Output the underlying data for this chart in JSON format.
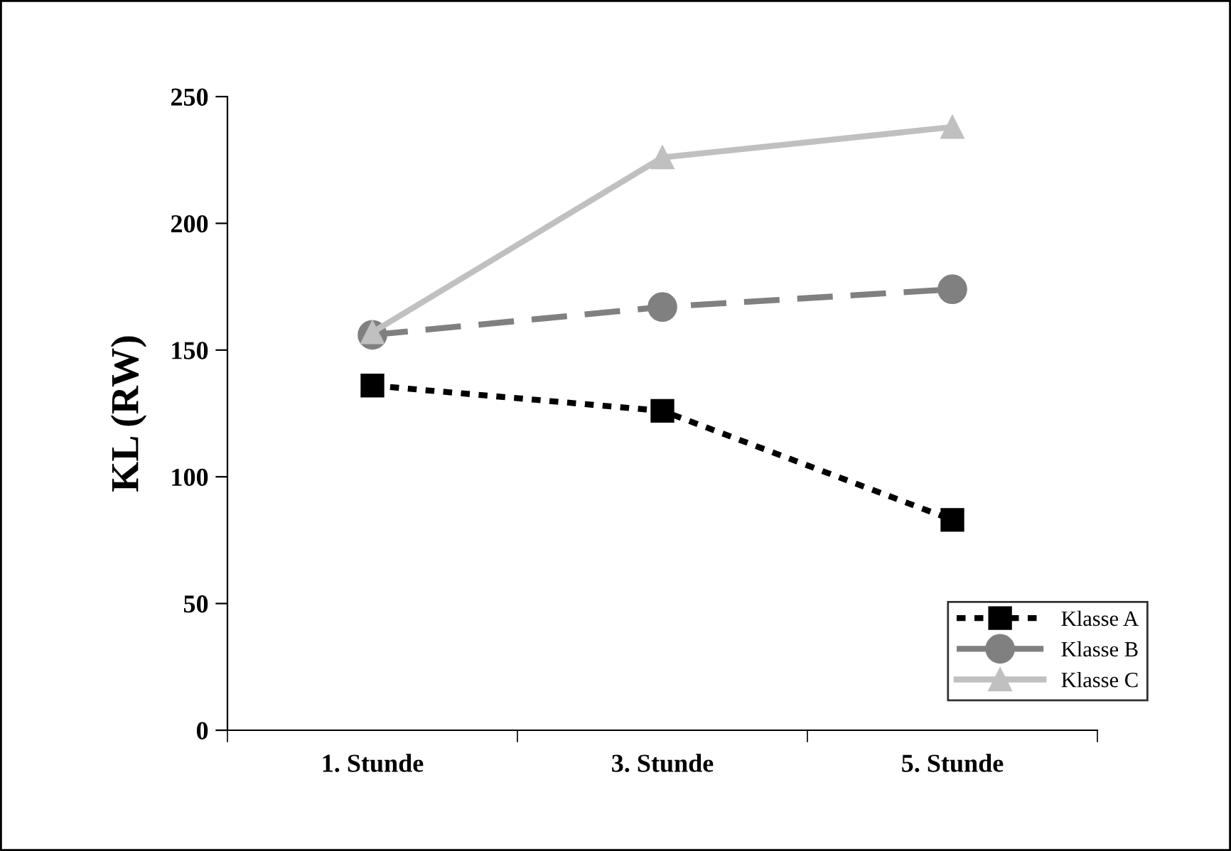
{
  "chart_data": {
    "type": "line",
    "ylabel": "KL (RW)",
    "categories": [
      "1. Stunde",
      "3. Stunde",
      "5. Stunde"
    ],
    "series": [
      {
        "name": "Klasse A",
        "color": "#000000",
        "marker": "square",
        "line_style": "dotted",
        "values": [
          136,
          126,
          83
        ]
      },
      {
        "name": "Klasse B",
        "color": "#808080",
        "marker": "circle",
        "line_style": "dashed",
        "values": [
          156,
          167,
          174
        ]
      },
      {
        "name": "Klasse C",
        "color": "#c0c0c0",
        "marker": "triangle",
        "line_style": "solid",
        "values": [
          157,
          226,
          238
        ]
      }
    ],
    "ylim": [
      0,
      250
    ],
    "yticks": [
      0,
      50,
      100,
      150,
      200,
      250
    ],
    "grid": false,
    "legend": "bottom right"
  }
}
